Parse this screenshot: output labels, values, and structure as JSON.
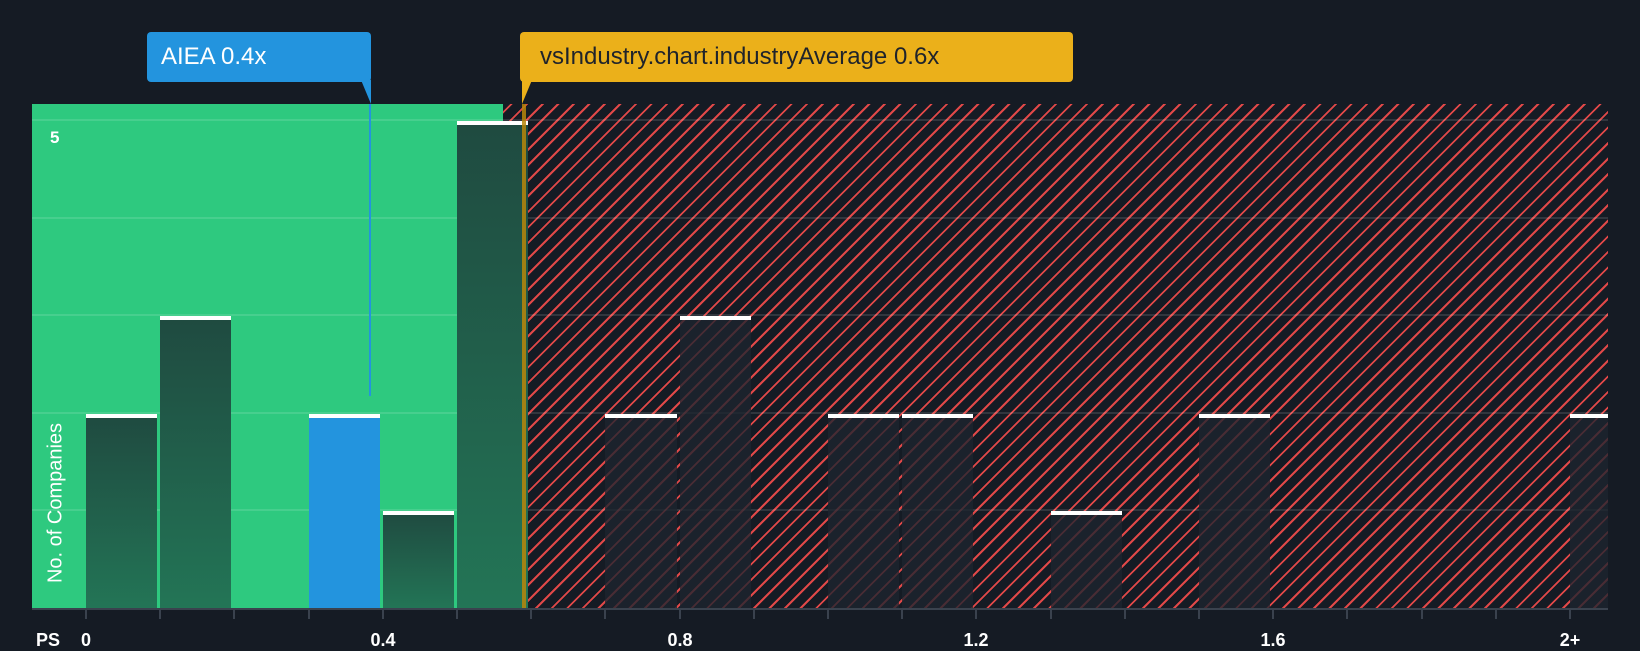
{
  "chart_data": {
    "type": "bar",
    "title": "",
    "xlabel": "PS",
    "ylabel": "No. of Companies",
    "x_tick_labels": [
      "0",
      "0.4",
      "0.8",
      "1.2",
      "1.6",
      "2+"
    ],
    "y_tick_labels": [
      "5"
    ],
    "ylim": [
      0,
      5
    ],
    "bin_width": 0.1,
    "categories": [
      "0.0",
      "0.1",
      "0.2",
      "0.3",
      "0.4",
      "0.5",
      "0.6",
      "0.7",
      "0.8",
      "0.9",
      "1.0",
      "1.1",
      "1.2",
      "1.3",
      "1.4",
      "1.5",
      "1.6",
      "1.7",
      "1.8",
      "1.9",
      "2+"
    ],
    "values": [
      2,
      3,
      0,
      2,
      1,
      5,
      0,
      2,
      3,
      0,
      2,
      2,
      0,
      1,
      0,
      2,
      0,
      0,
      0,
      0,
      2
    ],
    "highlight_bin": "0.3",
    "company": {
      "name": "AIEA",
      "value": 0.4,
      "label": "AIEA 0.4x",
      "color": "#2394de"
    },
    "industry_average": {
      "value": 0.6,
      "label": "vsIndustry.chart.industryAverage 0.6x",
      "color": "#ebb01a"
    },
    "regions": [
      {
        "name": "below-average",
        "range": [
          0,
          0.6
        ],
        "color": "#2ec97f"
      },
      {
        "name": "above-average",
        "range": [
          0.6,
          2.1
        ],
        "color": "#e04848",
        "pattern": "hatched"
      }
    ],
    "grid": true,
    "legend": "none"
  },
  "labels": {
    "company_callout": "AIEA 0.4x",
    "industry_callout": "vsIndustry.chart.industryAverage 0.6x",
    "y_axis_title": "No. of Companies",
    "x_axis_title": "PS",
    "y_tick_top": "5",
    "x_ticks": [
      "0",
      "0.4",
      "0.8",
      "1.2",
      "1.6",
      "2+"
    ]
  }
}
